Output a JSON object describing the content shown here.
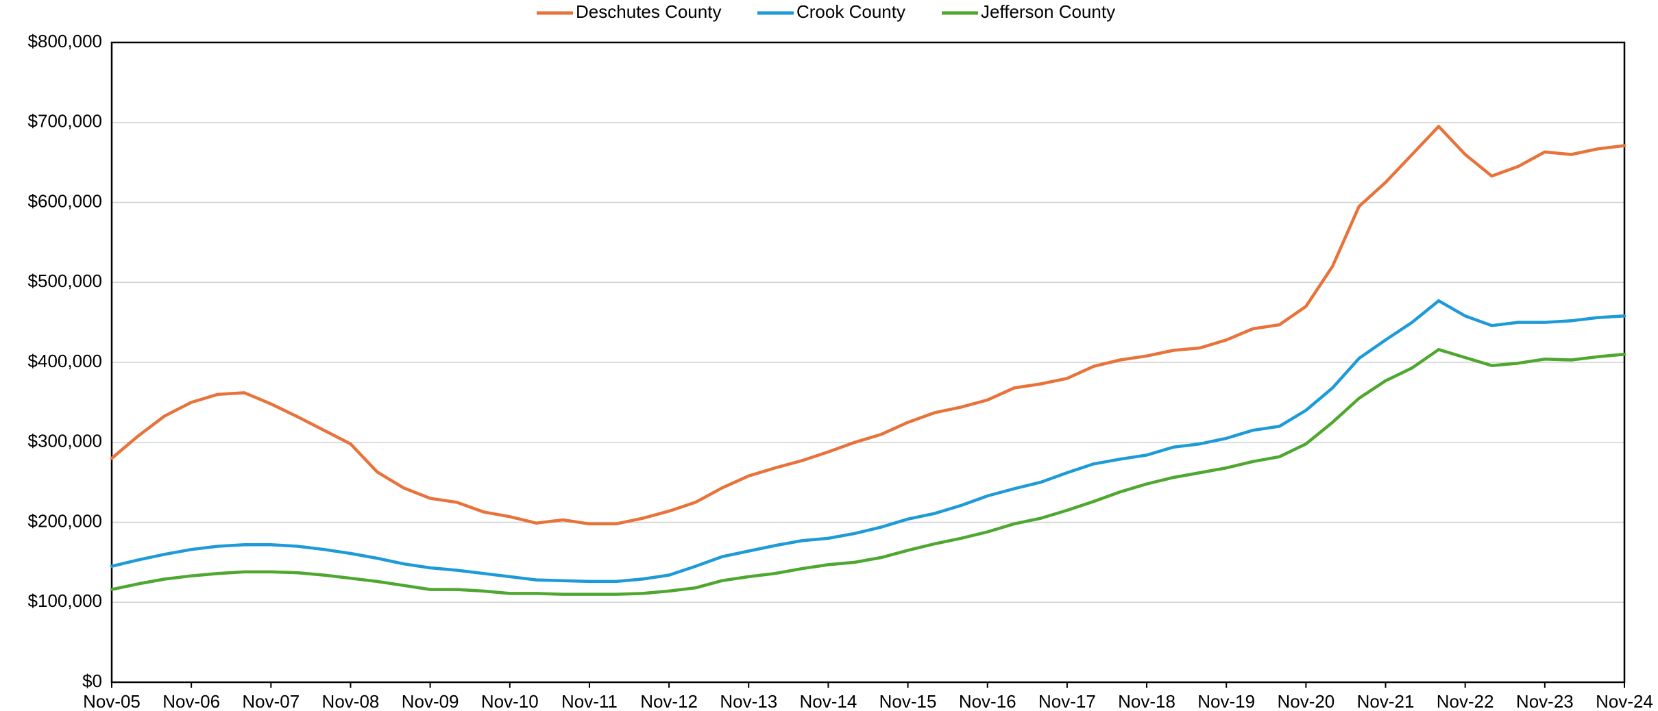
{
  "chart_data": {
    "type": "line",
    "categories": [
      "Nov-05",
      null,
      null,
      "Nov-06",
      null,
      null,
      "Nov-07",
      null,
      null,
      "Nov-08",
      null,
      null,
      "Nov-09",
      null,
      null,
      "Nov-10",
      null,
      null,
      "Nov-11",
      null,
      null,
      "Nov-12",
      null,
      null,
      "Nov-13",
      null,
      null,
      "Nov-14",
      null,
      null,
      "Nov-15",
      null,
      null,
      "Nov-16",
      null,
      null,
      "Nov-17",
      null,
      null,
      "Nov-18",
      null,
      null,
      "Nov-19",
      null,
      null,
      "Nov-20",
      null,
      null,
      "Nov-21",
      null,
      null,
      "Nov-22",
      null,
      null,
      "Nov-23",
      null,
      null,
      "Nov-24"
    ],
    "series": [
      {
        "name": "Deschutes County",
        "color": "#e8733a",
        "values": [
          280000,
          308000,
          333000,
          350000,
          360000,
          362000,
          348000,
          332000,
          315000,
          298000,
          263000,
          243000,
          230000,
          225000,
          213000,
          207000,
          199000,
          203000,
          198000,
          198000,
          205000,
          214000,
          225000,
          243000,
          258000,
          268000,
          277000,
          288000,
          300000,
          310000,
          325000,
          337000,
          344000,
          353000,
          368000,
          373000,
          380000,
          395000,
          403000,
          408000,
          415000,
          418000,
          428000,
          442000,
          447000,
          470000,
          520000,
          595000,
          625000,
          660000,
          695000,
          660000,
          633000,
          645000,
          663000,
          660000,
          667000,
          671000
        ]
      },
      {
        "name": "Crook County",
        "color": "#1e9bd7",
        "values": [
          145000,
          153000,
          160000,
          166000,
          170000,
          172000,
          172000,
          170000,
          166000,
          161000,
          155000,
          148000,
          143000,
          140000,
          136000,
          132000,
          128000,
          127000,
          126000,
          126000,
          129000,
          134000,
          145000,
          157000,
          164000,
          171000,
          177000,
          180000,
          186000,
          194000,
          204000,
          211000,
          221000,
          233000,
          242000,
          250000,
          262000,
          273000,
          279000,
          284000,
          294000,
          298000,
          305000,
          315000,
          320000,
          340000,
          368000,
          405000,
          428000,
          450000,
          477000,
          458000,
          446000,
          450000,
          450000,
          452000,
          456000,
          458000
        ]
      },
      {
        "name": "Jefferson County",
        "color": "#4ea72e",
        "values": [
          116000,
          123000,
          129000,
          133000,
          136000,
          138000,
          138000,
          137000,
          134000,
          130000,
          126000,
          121000,
          116000,
          116000,
          114000,
          111000,
          111000,
          110000,
          110000,
          110000,
          111000,
          114000,
          118000,
          127000,
          132000,
          136000,
          142000,
          147000,
          150000,
          156000,
          165000,
          173000,
          180000,
          188000,
          198000,
          205000,
          215000,
          226000,
          238000,
          248000,
          256000,
          262000,
          268000,
          276000,
          282000,
          298000,
          325000,
          355000,
          377000,
          393000,
          416000,
          406000,
          396000,
          399000,
          404000,
          403000,
          407000,
          410000
        ]
      }
    ],
    "ylim": [
      0,
      800000
    ],
    "yticks": [
      {
        "value": 0,
        "label": "$0"
      },
      {
        "value": 100000,
        "label": "$100,000"
      },
      {
        "value": 200000,
        "label": "$200,000"
      },
      {
        "value": 300000,
        "label": "$300,000"
      },
      {
        "value": 400000,
        "label": "$400,000"
      },
      {
        "value": 500000,
        "label": "$500,000"
      },
      {
        "value": 600000,
        "label": "$600,000"
      },
      {
        "value": 700000,
        "label": "$700,000"
      },
      {
        "value": 800000,
        "label": "$800,000"
      }
    ],
    "grid": true,
    "legend": "top"
  }
}
